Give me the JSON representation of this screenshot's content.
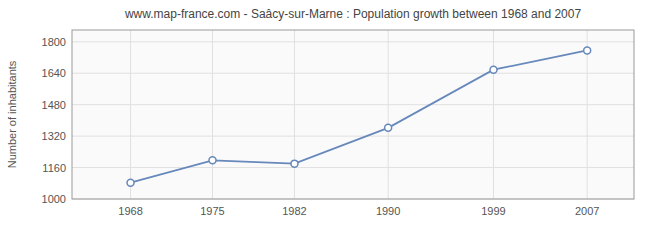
{
  "chart_data": {
    "type": "line",
    "title": "www.map-france.com - Saâcy-sur-Marne : Population growth between 1968 and 2007",
    "ylabel": "Number of inhabitants",
    "x": [
      1968,
      1975,
      1982,
      1990,
      1999,
      2007
    ],
    "values": [
      1083,
      1197,
      1180,
      1362,
      1658,
      1756
    ],
    "color": "#6688bb",
    "marker": "circle",
    "xlim": [
      1963,
      2011
    ],
    "ylim": [
      1000,
      1860
    ],
    "xticks": [
      1968,
      1975,
      1982,
      1990,
      1999,
      2007
    ],
    "yticks": [
      1000,
      1160,
      1320,
      1480,
      1640,
      1800
    ],
    "grid": true
  }
}
